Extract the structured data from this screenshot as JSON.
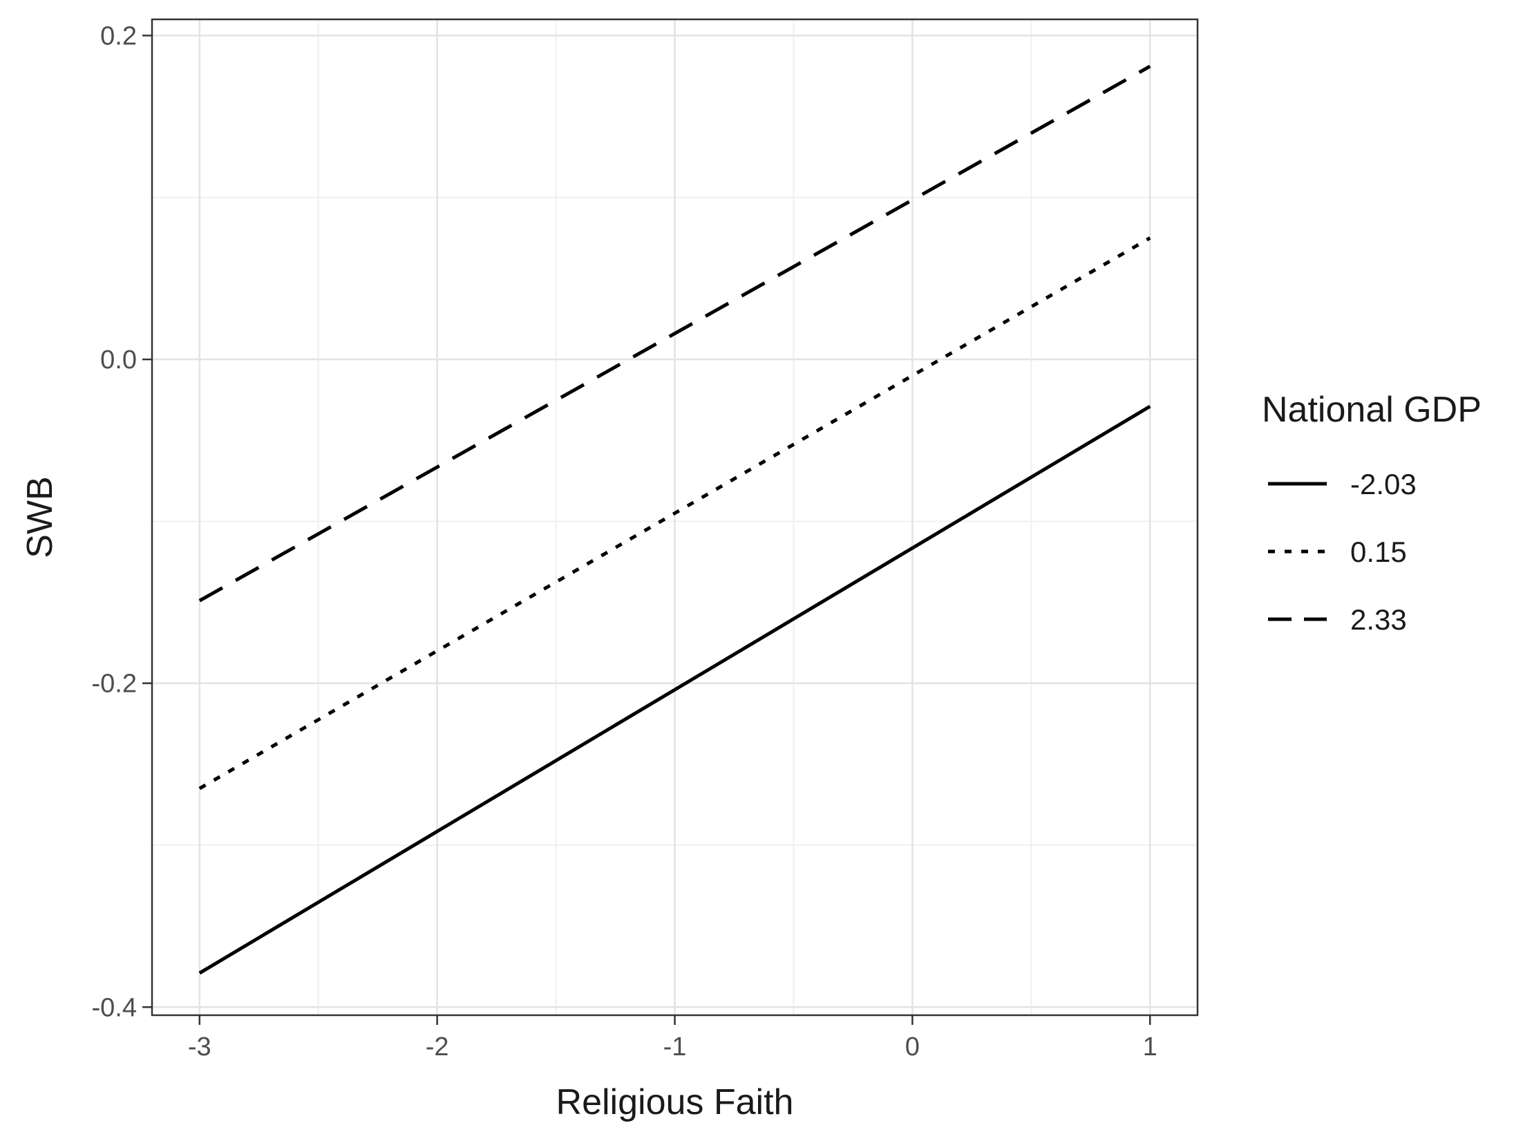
{
  "chart_data": {
    "type": "line",
    "title": "",
    "xlabel": "Religious Faith",
    "ylabel": "SWB",
    "xlim": [
      -3.2,
      1.2
    ],
    "ylim": [
      -0.405,
      0.21
    ],
    "x_ticks": [
      -3,
      -2,
      -1,
      0,
      1
    ],
    "x_tick_labels": [
      "-3",
      "-2",
      "-1",
      "0",
      "1"
    ],
    "y_ticks": [
      -0.4,
      -0.2,
      0.0,
      0.2
    ],
    "y_tick_labels": [
      "-0.4",
      "-0.2",
      "0.0",
      "0.2"
    ],
    "grid": true,
    "legend": {
      "title": "National GDP",
      "position": "right"
    },
    "series": [
      {
        "name": "-2.03",
        "linestyle": "solid",
        "color": "#000000",
        "x": [
          -3,
          1
        ],
        "y": [
          -0.379,
          -0.029
        ]
      },
      {
        "name": "0.15",
        "linestyle": "dotted",
        "color": "#000000",
        "x": [
          -3,
          1
        ],
        "y": [
          -0.265,
          0.075
        ]
      },
      {
        "name": "2.33",
        "linestyle": "dashed",
        "color": "#000000",
        "x": [
          -3,
          1
        ],
        "y": [
          -0.149,
          0.181
        ]
      }
    ]
  }
}
